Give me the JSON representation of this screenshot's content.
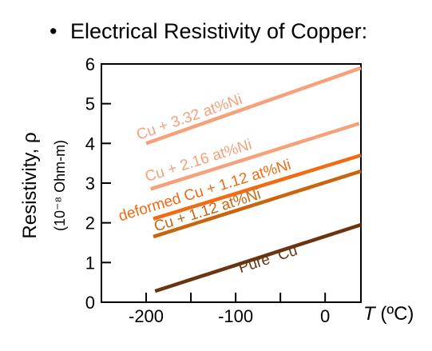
{
  "bullet": "•",
  "chart_data": {
    "type": "line",
    "title": "Electrical Resistivity of Copper:",
    "ylabel": "Resistivity, ρ",
    "ylabel_units": "(10⁻⁸ Ohm-m)",
    "xlabel_var": "T",
    "xlabel_unit": " (ºC)",
    "xlim": [
      -250,
      40
    ],
    "ylim": [
      0,
      6
    ],
    "x_ticks": [
      -200,
      -100,
      0
    ],
    "x_minor_ticks": [
      -250,
      -150,
      -50
    ],
    "y_ticks": [
      0,
      1,
      2,
      3,
      4,
      5,
      6
    ],
    "grid": false,
    "series": [
      {
        "name": "Cu + 3.32 at%Ni",
        "color": "#f5a27a",
        "x": [
          -200,
          40
        ],
        "y": [
          4.0,
          5.9
        ]
      },
      {
        "name": "Cu + 2.16 at%Ni",
        "color": "#f5a27a",
        "x": [
          -195,
          38
        ],
        "y": [
          2.85,
          4.5
        ]
      },
      {
        "name": "deformed Cu + 1.12 at%Ni",
        "color": "#f26a12",
        "x": [
          -192,
          40
        ],
        "y": [
          2.1,
          3.7
        ]
      },
      {
        "name": "Cu + 1.12 at%Ni",
        "color": "#c9650f",
        "x": [
          -192,
          40
        ],
        "y": [
          1.65,
          3.3
        ]
      },
      {
        "name": "“Pure” Cu",
        "color": "#6b3410",
        "x": [
          -190,
          40
        ],
        "y": [
          0.28,
          1.95
        ]
      }
    ],
    "annotations": [
      {
        "text": "Cu + 3.32 at%Ni",
        "color": "#f5a27a"
      },
      {
        "text": "Cu + 2.16 at%Ni",
        "color": "#f5a27a"
      },
      {
        "text": "deformed Cu + 1.12 at%Ni",
        "color": "#f26a12"
      },
      {
        "text": "Cu + 1.12 at%Ni",
        "color": "#c9650f"
      },
      {
        "text": "“Pure” Cu",
        "color": "#6b3410"
      }
    ]
  }
}
